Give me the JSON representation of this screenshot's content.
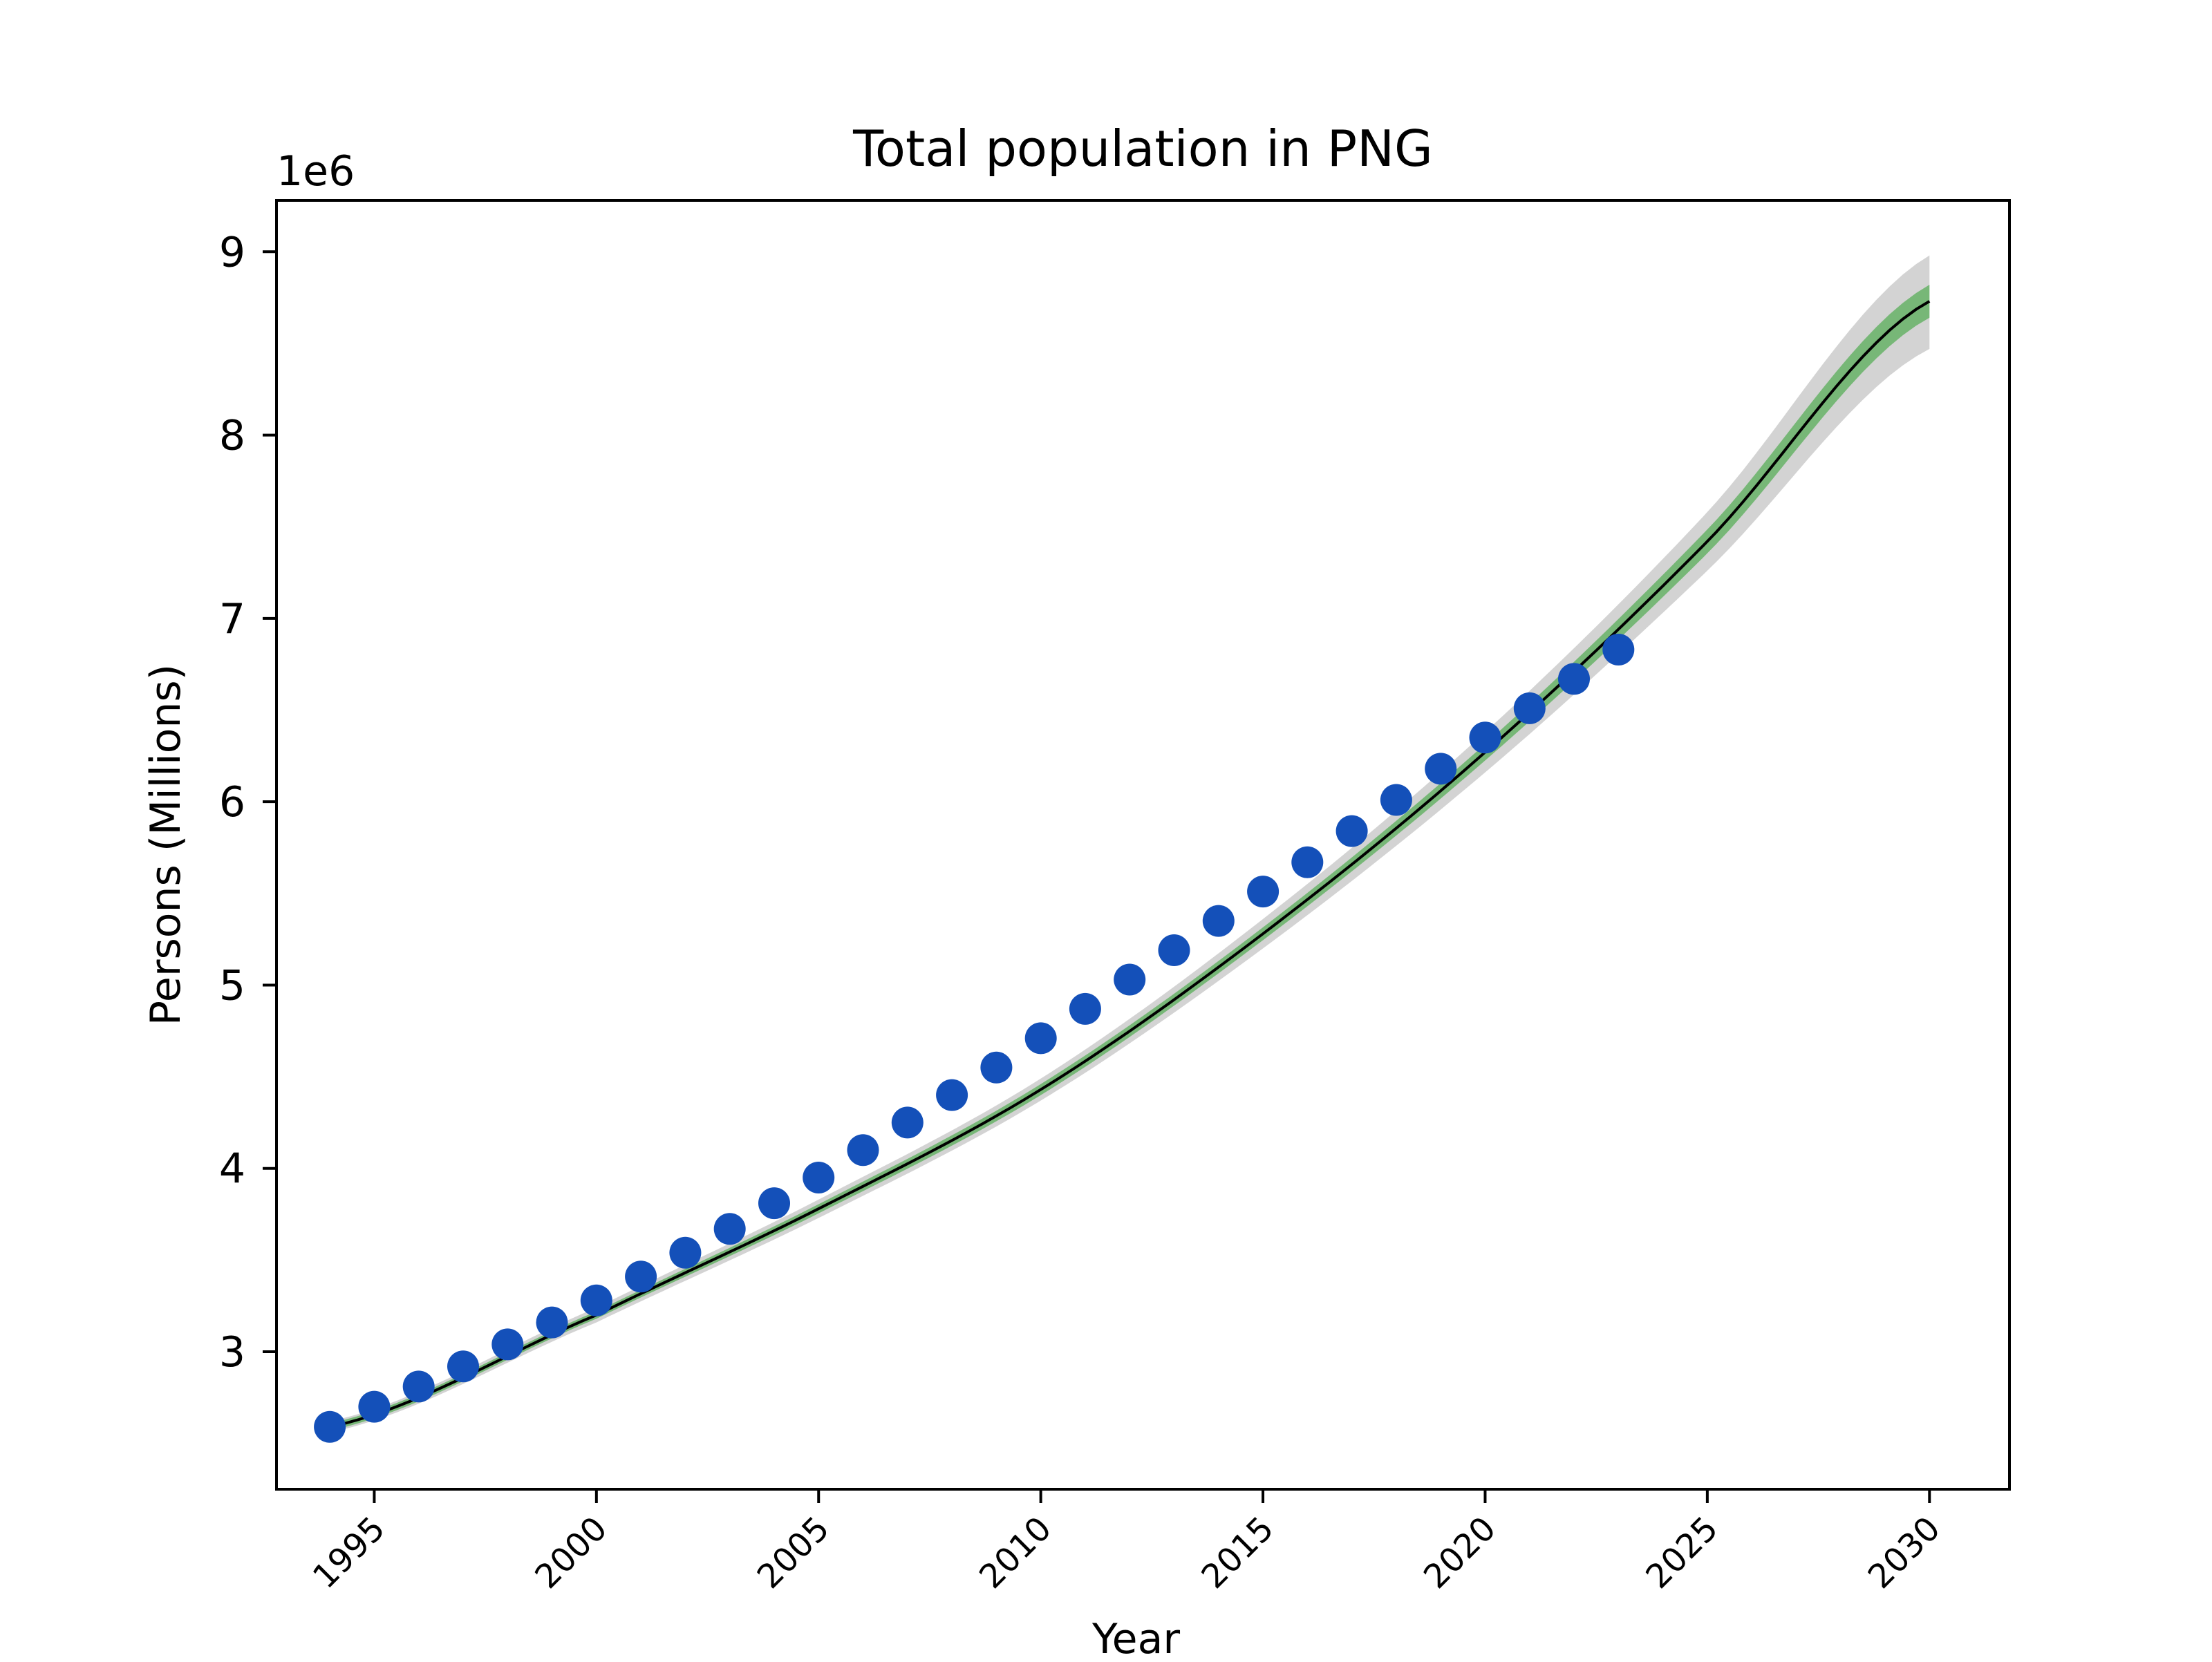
{
  "chart_data": {
    "type": "line",
    "title": "Total population in PNG",
    "xlabel": "Year",
    "ylabel": "Persons (Millions)",
    "y_offset_text": "1e6",
    "xlim": [
      1992.8,
      2031.8
    ],
    "ylim": [
      2250000,
      9280000
    ],
    "x_ticks": [
      1995,
      2000,
      2005,
      2010,
      2015,
      2020,
      2025,
      2030
    ],
    "x_tick_labels": [
      "1995",
      "2000",
      "2005",
      "2010",
      "2015",
      "2020",
      "2025",
      "2030"
    ],
    "y_ticks": [
      3000000,
      4000000,
      5000000,
      6000000,
      7000000,
      8000000,
      9000000
    ],
    "y_tick_labels": [
      "3",
      "4",
      "5",
      "6",
      "7",
      "8",
      "9"
    ],
    "grid": false,
    "legend": "none",
    "series": [
      {
        "kind": "scatter",
        "color": "#1450b9",
        "x": [
          1994,
          1995,
          1996,
          1997,
          1998,
          1999,
          2000,
          2001,
          2002,
          2003,
          2004,
          2005,
          2006,
          2007,
          2008,
          2009,
          2010,
          2011,
          2012,
          2013,
          2014,
          2015,
          2016,
          2017,
          2018,
          2019,
          2020,
          2021,
          2022,
          2023
        ],
        "y": [
          2590000,
          2700000,
          2810000,
          2920000,
          3040000,
          3160000,
          3280000,
          3410000,
          3540000,
          3670000,
          3810000,
          3950000,
          4100000,
          4250000,
          4400000,
          4550000,
          4710000,
          4870000,
          5030000,
          5190000,
          5350000,
          5510000,
          5670000,
          5840000,
          6010000,
          6180000,
          6350000,
          6510000,
          6670000,
          6830000
        ]
      },
      {
        "kind": "line",
        "color": "#000000",
        "x": [
          1994,
          2000,
          2005,
          2010,
          2015,
          2020,
          2025,
          2030
        ],
        "y": [
          2590000,
          3200000,
          3780000,
          4430000,
          5280000,
          6270000,
          7420000,
          8730000
        ]
      },
      {
        "kind": "band",
        "color": "#2ca02c",
        "x": [
          1994,
          2000,
          2005,
          2010,
          2015,
          2020,
          2025,
          2030
        ],
        "lower": [
          2570000,
          3180000,
          3755000,
          4400000,
          5245000,
          6225000,
          7355000,
          8640000
        ],
        "upper": [
          2610000,
          3220000,
          3805000,
          4460000,
          5315000,
          6315000,
          7485000,
          8820000
        ]
      },
      {
        "kind": "band",
        "color": "#9e9e9e",
        "x": [
          1994,
          2000,
          2005,
          2010,
          2015,
          2020,
          2025,
          2030
        ],
        "lower": [
          2560000,
          3160000,
          3730000,
          4370000,
          5200000,
          6160000,
          7260000,
          8470000
        ],
        "upper": [
          2620000,
          3240000,
          3830000,
          4490000,
          5360000,
          6380000,
          7580000,
          8980000
        ]
      }
    ]
  }
}
